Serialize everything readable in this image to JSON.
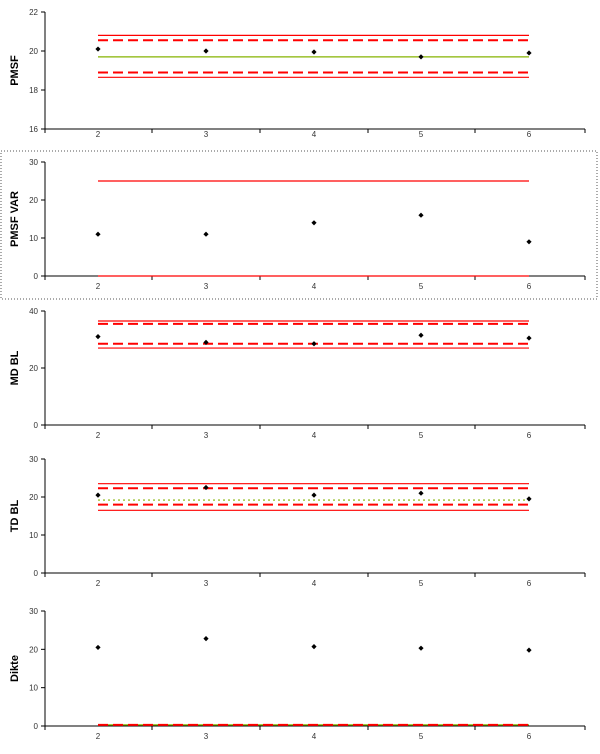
{
  "chart_data": [
    {
      "type": "scatter",
      "ylabel": "PMSF",
      "ylim": [
        16,
        22
      ],
      "yticks": [
        16,
        18,
        20,
        22
      ],
      "x": [
        2,
        3,
        4,
        5,
        6
      ],
      "values": [
        20.1,
        20.0,
        19.95,
        19.7,
        19.9
      ],
      "reference_lines": [
        {
          "y": 20.8,
          "style": "solid",
          "color": "#ff0000"
        },
        {
          "y": 20.55,
          "style": "dashed",
          "color": "#ff0000"
        },
        {
          "y": 19.7,
          "style": "solid",
          "color": "#86b300"
        },
        {
          "y": 18.9,
          "style": "dashed",
          "color": "#ff0000"
        },
        {
          "y": 18.65,
          "style": "solid",
          "color": "#ff0000"
        }
      ],
      "selected": false
    },
    {
      "type": "scatter",
      "ylabel": "PMSF VAR",
      "ylim": [
        0,
        30
      ],
      "yticks": [
        0,
        10,
        20,
        30
      ],
      "x": [
        2,
        3,
        4,
        5,
        6
      ],
      "values": [
        11,
        11,
        14,
        16,
        9
      ],
      "reference_lines": [
        {
          "y": 25,
          "style": "solid",
          "color": "#ff0000"
        },
        {
          "y": 0,
          "style": "solid",
          "color": "#ff0000"
        }
      ],
      "selected": true
    },
    {
      "type": "scatter",
      "ylabel": "MD BL",
      "ylim": [
        0,
        40
      ],
      "yticks": [
        0,
        20,
        40
      ],
      "x": [
        2,
        3,
        4,
        5,
        6
      ],
      "values": [
        31,
        29,
        28.5,
        31.5,
        30.5
      ],
      "reference_lines": [
        {
          "y": 36.5,
          "style": "solid",
          "color": "#ff0000"
        },
        {
          "y": 35.5,
          "style": "dashed",
          "color": "#ff0000"
        },
        {
          "y": 28.5,
          "style": "dashed",
          "color": "#ff0000"
        },
        {
          "y": 27.0,
          "style": "solid",
          "color": "#ff0000"
        }
      ],
      "selected": false
    },
    {
      "type": "scatter",
      "ylabel": "TD BL",
      "ylim": [
        0,
        30
      ],
      "yticks": [
        0,
        10,
        20,
        30
      ],
      "x": [
        2,
        3,
        4,
        5,
        6
      ],
      "values": [
        20.5,
        22.5,
        20.5,
        21,
        19.5
      ],
      "reference_lines": [
        {
          "y": 23.5,
          "style": "solid",
          "color": "#ff0000"
        },
        {
          "y": 22.3,
          "style": "dashed",
          "color": "#ff0000"
        },
        {
          "y": 19.2,
          "style": "dotted",
          "color": "#86b300"
        },
        {
          "y": 18.0,
          "style": "dashed",
          "color": "#ff0000"
        },
        {
          "y": 16.5,
          "style": "solid",
          "color": "#ff0000"
        }
      ],
      "selected": false
    },
    {
      "type": "scatter",
      "ylabel": "Dikte",
      "ylim": [
        0,
        30
      ],
      "yticks": [
        0,
        10,
        20,
        30
      ],
      "x": [
        2,
        3,
        4,
        5,
        6
      ],
      "values": [
        20.5,
        22.8,
        20.7,
        20.3,
        19.8
      ],
      "reference_lines": [
        {
          "y": 0.3,
          "style": "solid",
          "color": "#86b300"
        },
        {
          "y": 0.3,
          "style": "dashed",
          "color": "#ff0000"
        }
      ],
      "selected": false
    }
  ]
}
